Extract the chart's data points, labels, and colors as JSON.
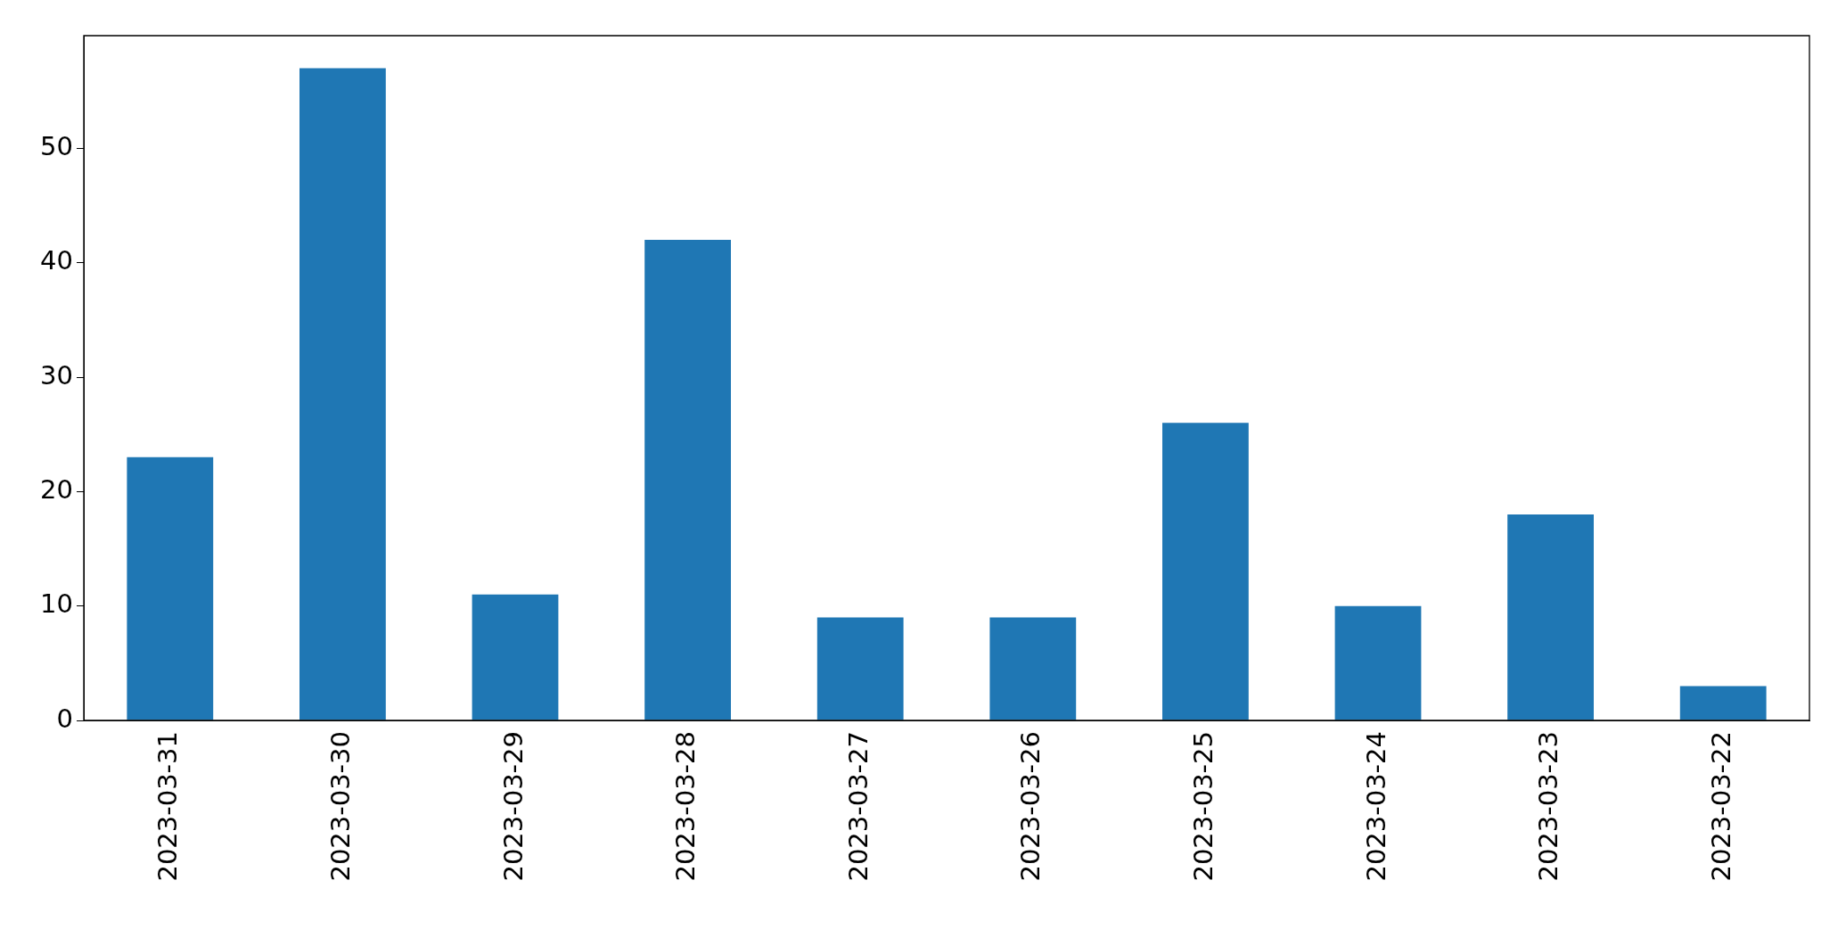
{
  "chart_data": {
    "type": "bar",
    "categories": [
      "2023-03-31",
      "2023-03-30",
      "2023-03-29",
      "2023-03-28",
      "2023-03-27",
      "2023-03-26",
      "2023-03-25",
      "2023-03-24",
      "2023-03-23",
      "2023-03-22"
    ],
    "values": [
      23,
      57,
      11,
      42,
      9,
      9,
      26,
      10,
      18,
      3
    ],
    "color": "#1f77b4",
    "ylim": [
      0,
      59.85
    ],
    "yticks": [
      0,
      10,
      20,
      30,
      40,
      50
    ]
  }
}
